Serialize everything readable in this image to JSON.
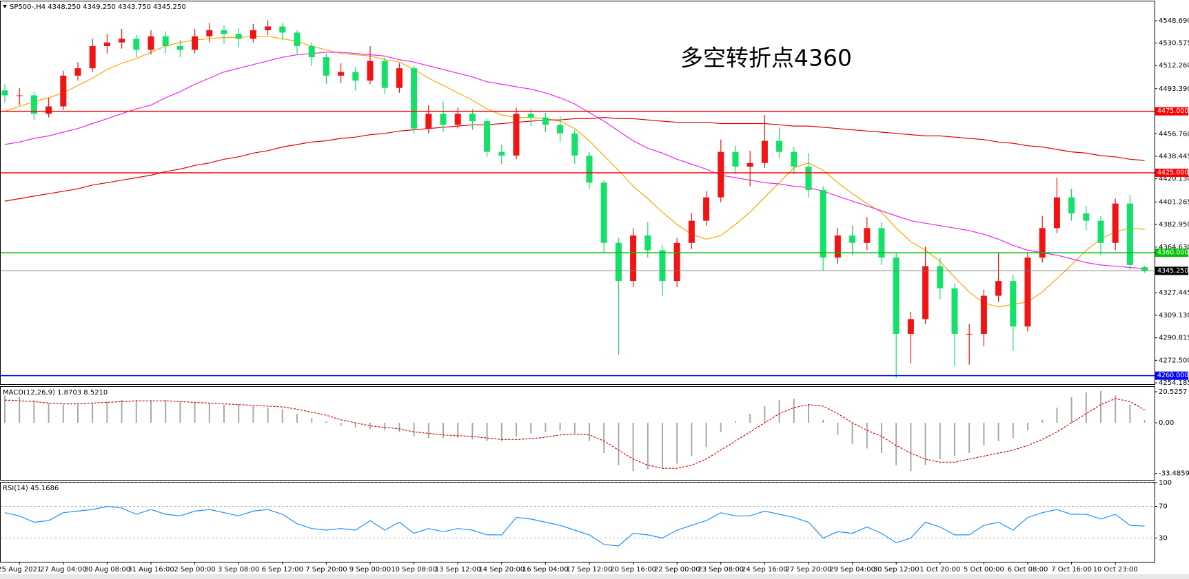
{
  "chart_data": [
    {
      "type": "candlestick",
      "title": "SP500-,H4  4348.250 4349.250 4343.750 4345.250",
      "annotation": "多空转折点4360",
      "annotation_color": "#e8141b",
      "up_color": "#f01414",
      "down_color": "#14e06a",
      "categories": [
        null,
        "25 Aug 2021",
        null,
        null,
        "27 Aug 04:00",
        null,
        null,
        "30 Aug 08:00",
        null,
        null,
        "31 Aug 16:00",
        null,
        null,
        "2 Sep 00:00",
        null,
        null,
        "3 Sep 08:00",
        null,
        null,
        "6 Sep 12:00",
        null,
        null,
        "7 Sep 20:00",
        null,
        null,
        "9 Sep 00:00",
        null,
        null,
        "10 Sep 08:00",
        null,
        null,
        "13 Sep 12:00",
        null,
        null,
        "14 Sep 20:00",
        null,
        null,
        "16 Sep 04:00",
        null,
        null,
        "17 Sep 12:00",
        null,
        null,
        "20 Sep 16:00",
        null,
        null,
        "22 Sep 00:00",
        null,
        null,
        "23 Sep 08:00",
        null,
        null,
        "24 Sep 16:00",
        null,
        null,
        "27 Sep 20:00",
        null,
        null,
        "29 Sep 04:00",
        null,
        null,
        "30 Sep 12:00",
        null,
        null,
        "1 Oct 20:00",
        null,
        null,
        "5 Oct 00:00",
        null,
        null,
        "6 Oct 08:00",
        null,
        null,
        "7 Oct 16:00",
        null,
        null,
        "10 Oct 23:00",
        null,
        null
      ],
      "open": [
        4492,
        4488,
        4488,
        4473,
        4479,
        4504,
        4510,
        4528,
        4531,
        4534,
        4525,
        4536,
        4528,
        4525,
        4536,
        4541,
        4538,
        4534,
        4541,
        4544,
        4539,
        4528,
        4519,
        4504,
        4507,
        4500,
        4516,
        4494,
        4510,
        4461,
        4473,
        4464,
        4473,
        4467,
        4442,
        4439,
        4473,
        4470,
        4464,
        4457,
        4439,
        4417,
        4368,
        4337,
        4374,
        4362,
        4337,
        4368,
        4386,
        4405,
        4442,
        4430,
        4433,
        4451,
        4442,
        4430,
        4411,
        4356,
        4374,
        4368,
        4380,
        4356,
        4294,
        4306,
        4349,
        4331,
        4294,
        4294,
        4325,
        4337,
        4300,
        4356,
        4380,
        4405,
        4392,
        4386,
        4368,
        4400,
        4348.25
      ],
      "high": [
        4497,
        4494,
        4491,
        4486,
        4508,
        4515,
        4534,
        4538,
        4542,
        4537,
        4541,
        4540,
        4533,
        4542,
        4547,
        4545,
        4543,
        4546,
        4549,
        4547,
        4541,
        4531,
        4522,
        4514,
        4511,
        4528,
        4519,
        4514,
        4512,
        4480,
        4483,
        4478,
        4477,
        4469,
        4448,
        4478,
        4477,
        4474,
        4471,
        4460,
        4442,
        4419,
        4372,
        4380,
        4385,
        4366,
        4372,
        4392,
        4410,
        4452,
        4447,
        4443,
        4472,
        4462,
        4446,
        4441,
        4414,
        4380,
        4382,
        4389,
        4385,
        4360,
        4312,
        4365,
        4356,
        4335,
        4302,
        4330,
        4360,
        4342,
        4360,
        4390,
        4421,
        4412,
        4398,
        4390,
        4404,
        4407,
        4349.25
      ],
      "low": [
        4482,
        4480,
        4468,
        4470,
        4476,
        4500,
        4507,
        4522,
        4526,
        4519,
        4521,
        4522,
        4519,
        4522,
        4531,
        4530,
        4527,
        4531,
        4537,
        4533,
        4522,
        4512,
        4497,
        4498,
        4492,
        4497,
        4489,
        4490,
        4457,
        4457,
        4458,
        4461,
        4460,
        4438,
        4432,
        4436,
        4463,
        4458,
        4450,
        4432,
        4412,
        4360,
        4277,
        4332,
        4356,
        4325,
        4332,
        4363,
        4382,
        4401,
        4424,
        4414,
        4429,
        4437,
        4424,
        4405,
        4345,
        4351,
        4358,
        4362,
        4350,
        4258,
        4270,
        4302,
        4322,
        4268,
        4269,
        4284,
        4320,
        4280,
        4296,
        4352,
        4376,
        4386,
        4378,
        4358,
        4362,
        4346,
        4343.75
      ],
      "close": [
        4488,
        4488,
        4473,
        4479,
        4504,
        4510,
        4528,
        4531,
        4534,
        4525,
        4536,
        4528,
        4525,
        4536,
        4541,
        4538,
        4534,
        4541,
        4544,
        4539,
        4528,
        4519,
        4504,
        4507,
        4500,
        4516,
        4494,
        4510,
        4461,
        4473,
        4464,
        4473,
        4467,
        4442,
        4439,
        4473,
        4470,
        4464,
        4457,
        4439,
        4417,
        4368,
        4337,
        4374,
        4362,
        4337,
        4368,
        4386,
        4405,
        4442,
        4430,
        4433,
        4451,
        4442,
        4430,
        4411,
        4356,
        4374,
        4368,
        4380,
        4356,
        4294,
        4306,
        4349,
        4331,
        4294,
        4294,
        4325,
        4337,
        4300,
        4356,
        4380,
        4405,
        4392,
        4386,
        4368,
        4400,
        4350,
        4345.25
      ],
      "series": [
        {
          "color": "#ffa500",
          "values": [
            4475,
            4479,
            4483,
            4486,
            4490,
            4496,
            4502,
            4509,
            4514,
            4518,
            4523,
            4528,
            4531,
            4533,
            4534,
            4535,
            4535,
            4536,
            4536,
            4534,
            4532,
            4528,
            4525,
            4522,
            4521,
            4520,
            4517,
            4515,
            4509,
            4502,
            4496,
            4490,
            4484,
            4477,
            4472,
            4470,
            4470,
            4469,
            4467,
            4461,
            4451,
            4439,
            4427,
            4414,
            4404,
            4393,
            4383,
            4375,
            4371,
            4374,
            4383,
            4393,
            4405,
            4417,
            4429,
            4433,
            4427,
            4417,
            4408,
            4400,
            4393,
            4380,
            4369,
            4362,
            4353,
            4340,
            4328,
            4319,
            4316,
            4318,
            4320,
            4328,
            4339,
            4350,
            4362,
            4371,
            4377,
            4380,
            4379
          ]
        },
        {
          "color": "#ee22ee",
          "values": [
            4448,
            4450,
            4453,
            4455,
            4458,
            4461,
            4465,
            4469,
            4473,
            4477,
            4480,
            4486,
            4491,
            4497,
            4502,
            4507,
            4510,
            4513,
            4516,
            4519,
            4521,
            4522,
            4523,
            4523,
            4522,
            4521,
            4520,
            4517,
            4515,
            4512,
            4509,
            4506,
            4503,
            4499,
            4497,
            4495,
            4493,
            4490,
            4486,
            4481,
            4474,
            4467,
            4459,
            4451,
            4445,
            4441,
            4436,
            4432,
            4428,
            4423,
            4421,
            4419,
            4417,
            4416,
            4414,
            4413,
            4410,
            4406,
            4402,
            4398,
            4394,
            4390,
            4386,
            4384,
            4382,
            4380,
            4378,
            4375,
            4371,
            4366,
            4362,
            4360,
            4358,
            4355,
            4352,
            4350,
            4349,
            4348,
            4347
          ]
        },
        {
          "color": "#e00000",
          "values": [
            4402,
            4404,
            4406,
            4408,
            4410,
            4412,
            4415,
            4417,
            4419,
            4421,
            4423,
            4426,
            4428,
            4431,
            4433,
            4436,
            4438,
            4441,
            4443,
            4446,
            4448,
            4450,
            4451,
            4453,
            4454,
            4456,
            4457,
            4459,
            4460,
            4461,
            4462,
            4463,
            4464,
            4464,
            4465,
            4466,
            4467,
            4468,
            4468,
            4469,
            4469,
            4470,
            4469,
            4469,
            4468,
            4467,
            4466,
            4466,
            4466,
            4465,
            4465,
            4465,
            4465,
            4464,
            4463,
            4463,
            4462,
            4461,
            4460,
            4459,
            4458,
            4457,
            4456,
            4455,
            4455,
            4454,
            4453,
            4452,
            4450,
            4449,
            4447,
            4446,
            4444,
            4442,
            4441,
            4439,
            4438,
            4436,
            4435
          ]
        }
      ],
      "levels": [
        {
          "value": 4475,
          "label": "4475.000",
          "color": "#ff0000"
        },
        {
          "value": 4425,
          "label": "4425.000",
          "color": "#ff0000"
        },
        {
          "value": 4360,
          "label": "4360.000",
          "color": "#00c000"
        },
        {
          "value": 4260,
          "label": "4260.000",
          "color": "#0000ff"
        }
      ],
      "current": {
        "value": 4345.25,
        "label": "4345.250",
        "color": "#808080"
      },
      "ylim": [
        4253.1,
        4564.4
      ],
      "yticks": [
        {
          "value": 4548.69,
          "label": "4548.690"
        },
        {
          "value": 4530.575,
          "label": "4530.575"
        },
        {
          "value": 4512.26,
          "label": "4512.260"
        },
        {
          "value": 4493.39,
          "label": "4493.390"
        },
        {
          "value": 4456.76,
          "label": "4456.760"
        },
        {
          "value": 4438.445,
          "label": "4438.445"
        },
        {
          "value": 4420.13,
          "label": "4420.130"
        },
        {
          "value": 4401.265,
          "label": "4401.265"
        },
        {
          "value": 4382.95,
          "label": "4382.950"
        },
        {
          "value": 4364.63,
          "label": "4364.630"
        },
        {
          "value": 4327.445,
          "label": "4327.445"
        },
        {
          "value": 4309.13,
          "label": "4309.130"
        },
        {
          "value": 4290.815,
          "label": "4290.815"
        },
        {
          "value": 4272.5,
          "label": "4272.500"
        },
        {
          "value": 4254.185,
          "label": "4254.185"
        }
      ]
    },
    {
      "type": "macd",
      "title": "MACD(12,26,9) 1.8703 8.5210",
      "histogram": {
        "color": "#a8a8a8",
        "values": [
          18,
          17,
          15,
          13,
          12,
          12,
          13,
          14,
          15,
          15,
          15,
          15,
          14,
          13,
          13,
          12,
          12,
          11,
          10,
          9,
          6,
          3,
          1,
          -2,
          -3,
          -4,
          -5,
          -6,
          -9,
          -10,
          -10,
          -10,
          -11,
          -12,
          -12,
          -9,
          -7,
          -6,
          -5,
          -7,
          -12,
          -20,
          -28,
          -32,
          -31,
          -30,
          -27,
          -22,
          -16,
          -6,
          1,
          6,
          11,
          15,
          16,
          12,
          2,
          -8,
          -14,
          -17,
          -20,
          -28,
          -32,
          -28,
          -24,
          -22,
          -20,
          -15,
          -12,
          -10,
          -5,
          2,
          10,
          17,
          20,
          21,
          18,
          12,
          1.8703
        ]
      },
      "signal": {
        "color": "#e00000",
        "values": [
          15,
          14.5,
          14,
          13,
          12.5,
          12.5,
          13,
          13.5,
          14,
          14.5,
          14.5,
          14.5,
          14,
          13.5,
          13,
          12.5,
          12,
          11.5,
          11,
          10.5,
          9,
          7,
          5,
          2,
          0,
          -2,
          -3,
          -4,
          -6,
          -7,
          -8,
          -8.5,
          -9,
          -10,
          -11,
          -11,
          -10.5,
          -9.5,
          -8,
          -7.5,
          -8,
          -12,
          -18,
          -24,
          -28,
          -30,
          -30,
          -28,
          -24,
          -18,
          -12,
          -6,
          0,
          6,
          10,
          12,
          11,
          6,
          0,
          -5,
          -9,
          -15,
          -20,
          -24,
          -26,
          -26,
          -24,
          -22,
          -20,
          -18,
          -15,
          -11,
          -6,
          0,
          6,
          12,
          16,
          14,
          8.521
        ]
      },
      "ylim": [
        -37.7,
        23.7
      ],
      "yticks": [
        20.5257,
        {
          "value": 0,
          "label": "0.00"
        },
        -33.4859
      ]
    },
    {
      "type": "line",
      "title": "RSI(14) 45.1686",
      "color": "#1e90ff",
      "values": [
        62,
        58,
        50,
        52,
        62,
        64,
        66,
        70,
        68,
        60,
        66,
        60,
        58,
        64,
        66,
        62,
        58,
        64,
        66,
        60,
        48,
        42,
        40,
        42,
        40,
        52,
        40,
        50,
        36,
        42,
        38,
        42,
        40,
        34,
        34,
        56,
        54,
        50,
        46,
        40,
        34,
        22,
        20,
        36,
        34,
        30,
        40,
        46,
        52,
        62,
        58,
        58,
        64,
        60,
        56,
        50,
        30,
        38,
        36,
        44,
        36,
        24,
        30,
        50,
        44,
        34,
        34,
        46,
        50,
        40,
        56,
        62,
        66,
        60,
        60,
        54,
        60,
        46,
        45.1686
      ],
      "ylim": [
        0,
        100
      ],
      "yticks": [
        30,
        70,
        100
      ]
    }
  ]
}
